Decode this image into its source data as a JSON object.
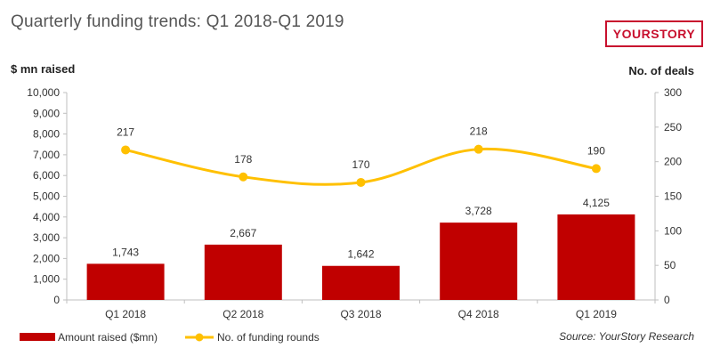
{
  "page": {
    "title": "Quarterly funding trends: Q1 2018-Q1 2019",
    "logo_text": "YOURSTORY",
    "source": "Source: YourStory Research"
  },
  "colors": {
    "bar": "#c00000",
    "line": "#ffc000",
    "brand": "#c8102e",
    "axis": "#bfbfbf"
  },
  "chart_data": {
    "type": "bar",
    "title": "Quarterly funding trends: Q1 2018-Q1 2019",
    "categories": [
      "Q1 2018",
      "Q2 2018",
      "Q3 2018",
      "Q4 2018",
      "Q1 2019"
    ],
    "series": [
      {
        "name": "Amount raised ($mn)",
        "type": "bar",
        "axis": "left",
        "values": [
          1743,
          2667,
          1642,
          3728,
          4125
        ],
        "value_labels": [
          "1,743",
          "2,667",
          "1,642",
          "3,728",
          "4,125"
        ]
      },
      {
        "name": "No. of funding rounds",
        "type": "line",
        "axis": "right",
        "values": [
          217,
          178,
          170,
          218,
          190
        ],
        "value_labels": [
          "217",
          "178",
          "170",
          "218",
          "190"
        ]
      }
    ],
    "ylabel": "$ mn raised",
    "y2label": "No. of deals",
    "ylim": [
      0,
      10000
    ],
    "y2lim": [
      0,
      300
    ],
    "yticks": [
      "0",
      "1,000",
      "2,000",
      "3,000",
      "4,000",
      "5,000",
      "6,000",
      "7,000",
      "8,000",
      "9,000",
      "10,000"
    ],
    "y2ticks": [
      "0",
      "50",
      "100",
      "150",
      "200",
      "250",
      "300"
    ],
    "legend": "bottom-left",
    "grid": false
  }
}
